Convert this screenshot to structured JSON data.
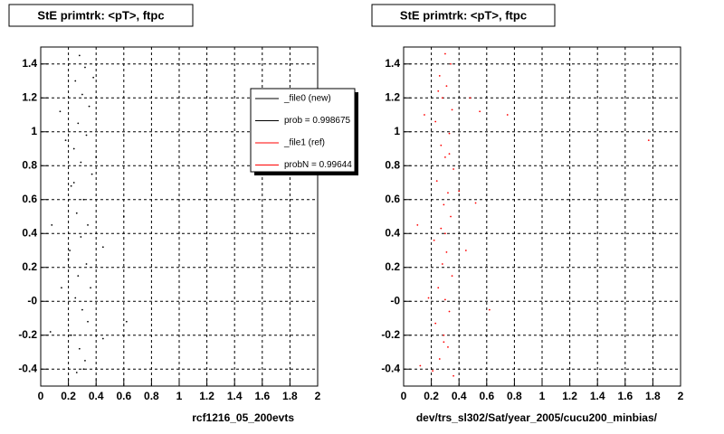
{
  "chart_data": [
    {
      "type": "scatter",
      "title": "StE primtrk: <pT>, ftpc",
      "x_label": "rcf1216_05_200evts",
      "xlim": [
        0,
        2
      ],
      "ylim": [
        -0.5,
        1.5
      ],
      "xticks": [
        0,
        0.2,
        0.4,
        0.6,
        0.8,
        1,
        1.2,
        1.4,
        1.6,
        1.8,
        2
      ],
      "yticks": [
        -0.4,
        -0.2,
        {
          "value": 0,
          "label": "-0"
        },
        0.2,
        0.4,
        0.6,
        0.8,
        1,
        1.2,
        1.4
      ],
      "grid": true,
      "legend": [
        {
          "label": "_file0 (new)",
          "color": "#000000"
        },
        {
          "label": "prob = 0.998675",
          "color": "#000000"
        },
        {
          "label": "_file1 (ref)",
          "color": "#ff0000"
        },
        {
          "label": "probN = 0.99644",
          "color": "#ff0000"
        }
      ],
      "series": [
        {
          "color": "#000000",
          "x": [
            0.28,
            0.32,
            0.25,
            0.3,
            0.35,
            0.27,
            0.14,
            0.33,
            0.24,
            0.29,
            0.37,
            0.22,
            0.31,
            0.26,
            0.34,
            0.29,
            0.21,
            0.33,
            0.27,
            0.36,
            0.25,
            0.3,
            0.34,
            0.22,
            0.28,
            0.32,
            0.26,
            0.45,
            0.6,
            0.08,
            0.15,
            0.45,
            0.62,
            0.07,
            0.4,
            0.18,
            0.38,
            0.2,
            0.31,
            0.24
          ],
          "values": [
            1.45,
            1.38,
            1.3,
            1.22,
            1.15,
            1.05,
            1.12,
            0.98,
            0.9,
            0.82,
            0.75,
            0.68,
            0.6,
            0.52,
            0.45,
            0.38,
            0.3,
            0.22,
            0.15,
            0.08,
            0.02,
            -0.05,
            -0.12,
            -0.2,
            -0.28,
            -0.35,
            -0.42,
            0.32,
            0.5,
            0.45,
            0.08,
            -0.22,
            -0.12,
            -0.18,
            0.85,
            0.95,
            1.32,
            0.25,
            -0.4,
            0.7
          ]
        }
      ]
    },
    {
      "type": "scatter",
      "title": "StE primtrk: <pT>, ftpc",
      "x_label": "dev/trs_sl302/Sat/year_2005/cucu200_minbias/",
      "xlim": [
        0,
        2
      ],
      "ylim": [
        -0.5,
        1.5
      ],
      "xticks": [
        0,
        0.2,
        0.4,
        0.6,
        0.8,
        1,
        1.2,
        1.4,
        1.6,
        1.8,
        2
      ],
      "yticks": [
        -0.4,
        -0.2,
        {
          "value": 0,
          "label": "-0"
        },
        0.2,
        0.4,
        0.6,
        0.8,
        1,
        1.2,
        1.4
      ],
      "grid": true,
      "series": [
        {
          "color": "#ff0000",
          "x": [
            0.3,
            0.34,
            0.26,
            0.31,
            0.28,
            0.35,
            0.23,
            0.33,
            0.27,
            0.3,
            0.36,
            0.24,
            0.32,
            0.29,
            0.34,
            0.27,
            0.22,
            0.31,
            0.28,
            0.35,
            0.25,
            0.3,
            0.33,
            0.23,
            0.29,
            0.32,
            0.26,
            0.21,
            0.36,
            0.3,
            0.75,
            1.77,
            0.55,
            0.48,
            0.62,
            0.1,
            0.15,
            0.45,
            0.52,
            0.12,
            0.18,
            0.4,
            0.25,
            0.33,
            0.29
          ],
          "values": [
            1.46,
            1.4,
            1.33,
            1.27,
            1.2,
            1.13,
            1.06,
            0.99,
            0.92,
            0.85,
            0.78,
            0.71,
            0.64,
            0.57,
            0.5,
            0.43,
            0.36,
            0.29,
            0.22,
            0.15,
            0.08,
            0.01,
            -0.06,
            -0.13,
            -0.2,
            -0.27,
            -0.34,
            -0.41,
            -0.44,
            0.4,
            1.1,
            0.95,
            1.12,
            1.2,
            -0.05,
            0.45,
            1.1,
            0.3,
            0.58,
            -0.38,
            0.02,
            0.65,
            1.24,
            0.87,
            -0.24
          ]
        }
      ]
    }
  ]
}
